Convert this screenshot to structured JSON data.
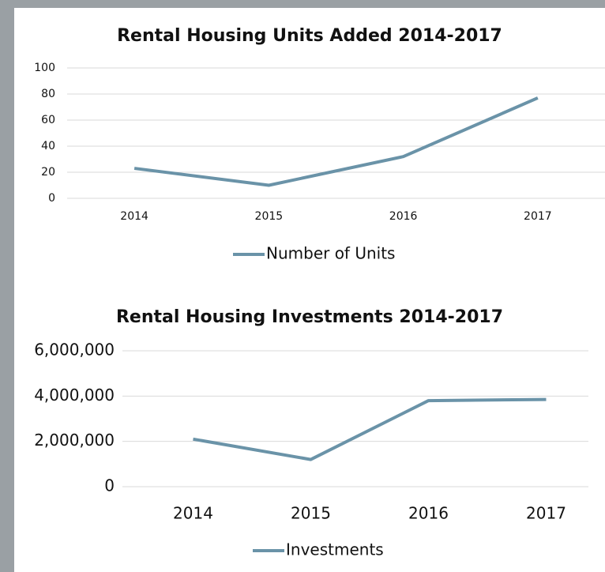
{
  "chart_data": [
    {
      "type": "line",
      "title": "Rental Housing Units Added 2014-2017",
      "categories": [
        "2014",
        "2015",
        "2016",
        "2017"
      ],
      "series": [
        {
          "name": "Number of Units",
          "color": "#6a93a8",
          "values": [
            23,
            10,
            32,
            77
          ]
        }
      ],
      "ylim": [
        0,
        100
      ],
      "yticks": [
        0,
        20,
        40,
        60,
        80,
        100
      ],
      "grid": true,
      "legend": "bottom"
    },
    {
      "type": "line",
      "title": "Rental Housing Investments 2014-2017",
      "categories": [
        "2014",
        "2015",
        "2016",
        "2017"
      ],
      "series": [
        {
          "name": "Investments",
          "color": "#6a93a8",
          "values": [
            2100000,
            1200000,
            3800000,
            3850000
          ]
        }
      ],
      "ylim": [
        0,
        6000000
      ],
      "yticks": [
        0,
        {
          "value": 2000000,
          "label": "2,000,000"
        },
        {
          "value": 4000000,
          "label": "4,000,000"
        },
        {
          "value": 6000000,
          "label": "6,000,000"
        }
      ],
      "grid": true,
      "legend": "bottom"
    }
  ]
}
